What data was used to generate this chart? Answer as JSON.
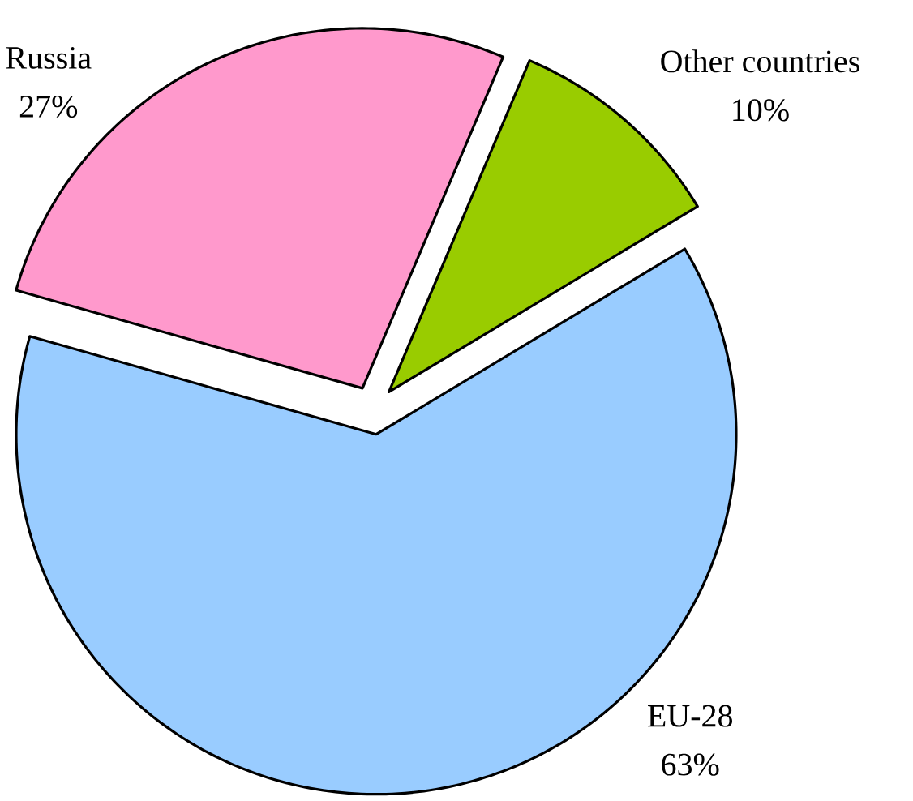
{
  "chart_data": {
    "type": "pie",
    "categories": [
      "Other countries",
      "EU-28",
      "Russia"
    ],
    "values": [
      10,
      63,
      27
    ],
    "colors": [
      "#99cc00",
      "#99ccff",
      "#ff99cc"
    ],
    "value_labels": [
      "10%",
      "63%",
      "27%"
    ]
  }
}
